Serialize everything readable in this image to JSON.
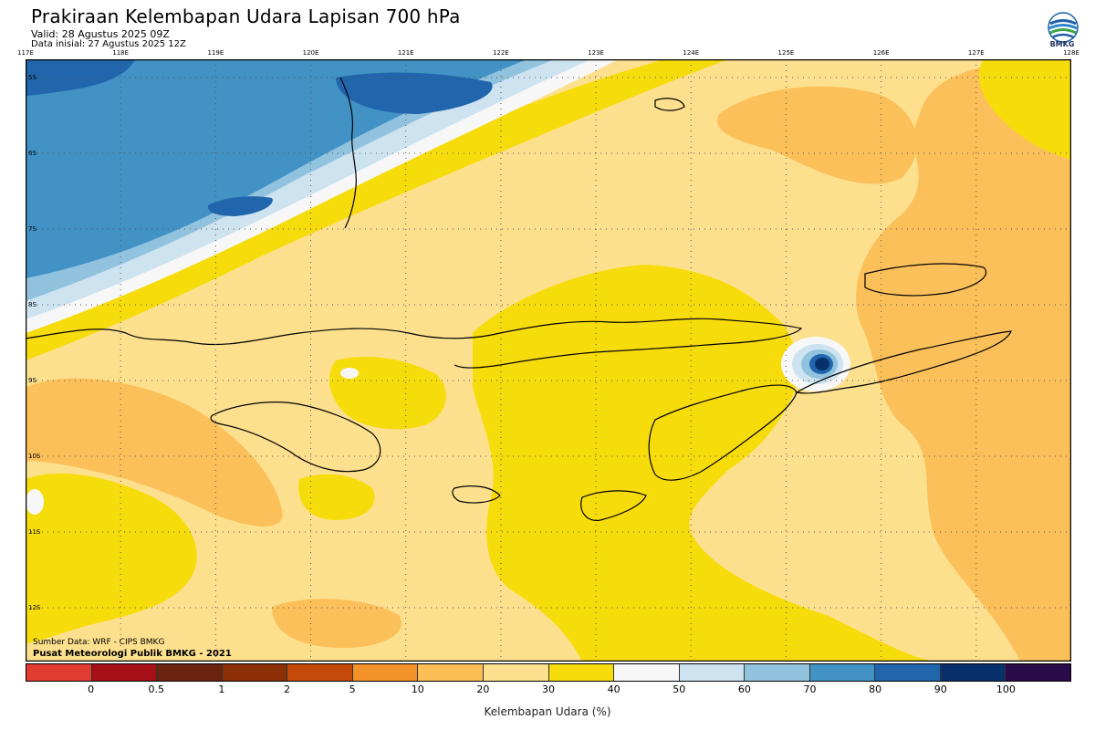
{
  "header": {
    "title": "Prakiraan Kelembapan Udara Lapisan 700 hPa",
    "valid": "Valid: 28 Agustus 2025 09Z",
    "initial": "Data inisial: 27 Agustus 2025 12Z"
  },
  "logo": {
    "text": "BMKG",
    "icon": "bmkg-logo-icon"
  },
  "map": {
    "lon_labels": [
      "117E",
      "118E",
      "119E",
      "120E",
      "121E",
      "122E",
      "123E",
      "124E",
      "125E",
      "126E",
      "127E",
      "128E"
    ],
    "lat_labels": [
      "5S",
      "6S",
      "7S",
      "8S",
      "9S",
      "10S",
      "11S",
      "12S"
    ],
    "region": "Nusa Tenggara",
    "grid": true
  },
  "source": {
    "line1": "Sumber Data: WRF - CIPS BMKG",
    "line2": "Pusat Meteorologi Publik BMKG - 2021"
  },
  "colorbar": {
    "title": "Kelembapan Udara (%)",
    "labels": [
      "0",
      "0.5",
      "1",
      "2",
      "5",
      "10",
      "20",
      "30",
      "40",
      "50",
      "60",
      "70",
      "80",
      "90",
      "100"
    ],
    "colors": [
      "#e03c32",
      "#a50f15",
      "#6b2410",
      "#8c3008",
      "#c44a0a",
      "#f39228",
      "#fbbf55",
      "#fde08e",
      "#f7dc0c",
      "#f7f7f7",
      "#cde3f0",
      "#92c3de",
      "#4292c6",
      "#2166ac",
      "#08306b",
      "#2a0a48"
    ]
  },
  "field_colors": {
    "dry": "#fcc05a",
    "light": "#fde08e",
    "yellow": "#f7dc0c",
    "white": "#f7f7f7",
    "pale_blue": "#cde3f0",
    "light_blue": "#92c3de",
    "blue": "#4292c6",
    "dark_blue": "#2166ac",
    "navy": "#08306b"
  }
}
